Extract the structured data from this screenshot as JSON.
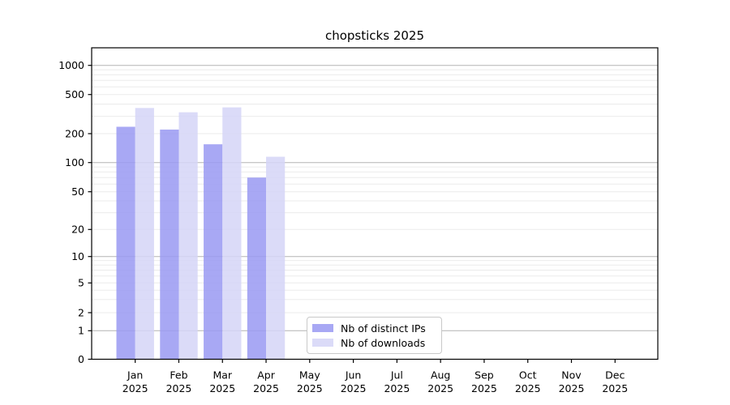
{
  "chart_data": {
    "type": "bar",
    "title": "chopsticks 2025",
    "scale": "symlog",
    "grid": true,
    "legend_position": "inside-bottom-center",
    "xlabel": "",
    "ylabel": "",
    "ylim": [
      0,
      1550
    ],
    "y_ticks": [
      0,
      1,
      2,
      5,
      10,
      20,
      50,
      100,
      200,
      500,
      1000
    ],
    "x_tick_labels": [
      {
        "month": "Jan",
        "year": "2025"
      },
      {
        "month": "Feb",
        "year": "2025"
      },
      {
        "month": "Mar",
        "year": "2025"
      },
      {
        "month": "Apr",
        "year": "2025"
      },
      {
        "month": "May",
        "year": "2025"
      },
      {
        "month": "Jun",
        "year": "2025"
      },
      {
        "month": "Jul",
        "year": "2025"
      },
      {
        "month": "Aug",
        "year": "2025"
      },
      {
        "month": "Sep",
        "year": "2025"
      },
      {
        "month": "Oct",
        "year": "2025"
      },
      {
        "month": "Nov",
        "year": "2025"
      },
      {
        "month": "Dec",
        "year": "2025"
      }
    ],
    "series": [
      {
        "name": "Nb of distinct IPs",
        "color": "#9999f2",
        "values": [
          235,
          220,
          155,
          70,
          null,
          null,
          null,
          null,
          null,
          null,
          null,
          null
        ]
      },
      {
        "name": "Nb of downloads",
        "color": "#d5d5f7",
        "values": [
          365,
          330,
          370,
          115,
          null,
          null,
          null,
          null,
          null,
          null,
          null,
          null
        ]
      }
    ],
    "colors": {
      "major_grid": "#b4b4b4",
      "minor_grid": "#ebebeb",
      "axis_frame": "#000000",
      "text": "#000000"
    }
  }
}
